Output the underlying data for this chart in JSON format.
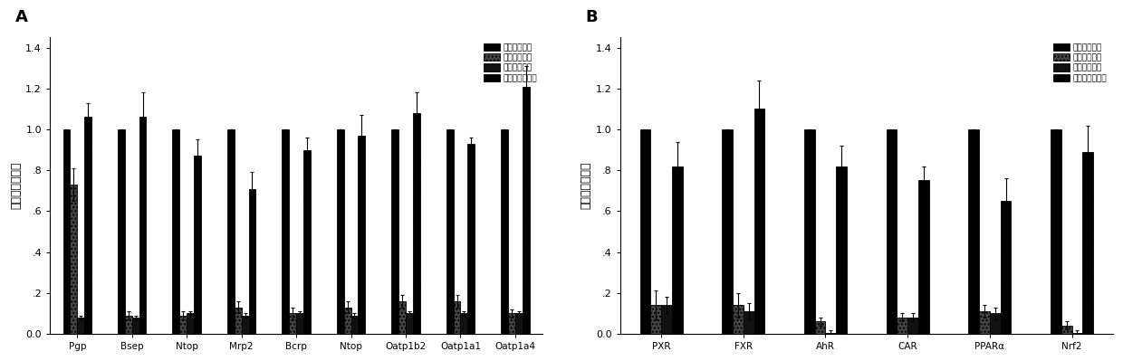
{
  "panel_A": {
    "categories": [
      "Pgp",
      "Bsep",
      "Ntop",
      "Mrp2",
      "Bcrp",
      "Ntop",
      "Oatp1b2",
      "Oatp1a1",
      "Oatp1a4"
    ],
    "series": {
      "rat_fibroblast": [
        1.0,
        1.0,
        1.0,
        1.0,
        1.0,
        1.0,
        1.0,
        1.0,
        1.0
      ],
      "mouse_hepatocyte": [
        0.73,
        0.09,
        0.09,
        0.13,
        0.1,
        0.13,
        0.16,
        0.16,
        0.1
      ],
      "conventional": [
        0.08,
        0.08,
        0.1,
        0.09,
        0.1,
        0.09,
        0.1,
        0.1,
        0.1
      ],
      "optimized": [
        1.06,
        1.06,
        0.87,
        0.71,
        0.9,
        0.97,
        1.08,
        0.93,
        1.21
      ]
    },
    "errors": {
      "rat_fibroblast": [
        0.0,
        0.0,
        0.0,
        0.0,
        0.0,
        0.0,
        0.0,
        0.0,
        0.0
      ],
      "mouse_hepatocyte": [
        0.08,
        0.02,
        0.02,
        0.03,
        0.03,
        0.03,
        0.03,
        0.03,
        0.02
      ],
      "conventional": [
        0.01,
        0.01,
        0.01,
        0.01,
        0.01,
        0.01,
        0.01,
        0.01,
        0.01
      ],
      "optimized": [
        0.07,
        0.12,
        0.08,
        0.08,
        0.06,
        0.1,
        0.1,
        0.03,
        0.1
      ]
    }
  },
  "panel_B": {
    "categories": [
      "PXR",
      "FXR",
      "AhR",
      "CAR",
      "PPARα",
      "Nrf2"
    ],
    "series": {
      "rat_fibroblast": [
        1.0,
        1.0,
        1.0,
        1.0,
        1.0,
        1.0
      ],
      "mouse_hepatocyte": [
        0.14,
        0.14,
        0.06,
        0.08,
        0.11,
        0.04
      ],
      "conventional": [
        0.14,
        0.11,
        0.005,
        0.08,
        0.1,
        0.005
      ],
      "optimized": [
        0.82,
        1.1,
        0.82,
        0.75,
        0.65,
        0.89
      ]
    },
    "errors": {
      "rat_fibroblast": [
        0.0,
        0.0,
        0.0,
        0.0,
        0.0,
        0.0
      ],
      "mouse_hepatocyte": [
        0.07,
        0.06,
        0.02,
        0.02,
        0.03,
        0.02
      ],
      "conventional": [
        0.04,
        0.04,
        0.01,
        0.02,
        0.03,
        0.01
      ],
      "optimized": [
        0.12,
        0.14,
        0.1,
        0.07,
        0.11,
        0.13
      ]
    }
  },
  "legend_labels": [
    "鼠尾纤维细胞",
    "小鼠肘脖细胞",
    "传统肘样细胞",
    "优化后肘样细胞"
  ],
  "ylabel": "相对基因表达量",
  "yticks": [
    0.0,
    0.2,
    0.4,
    0.6,
    0.8,
    1.0,
    1.2,
    1.4
  ],
  "yticklabels": [
    "0.0",
    ".2",
    ".4",
    ".6",
    ".8",
    "1.0",
    "1.2",
    "1.4"
  ]
}
